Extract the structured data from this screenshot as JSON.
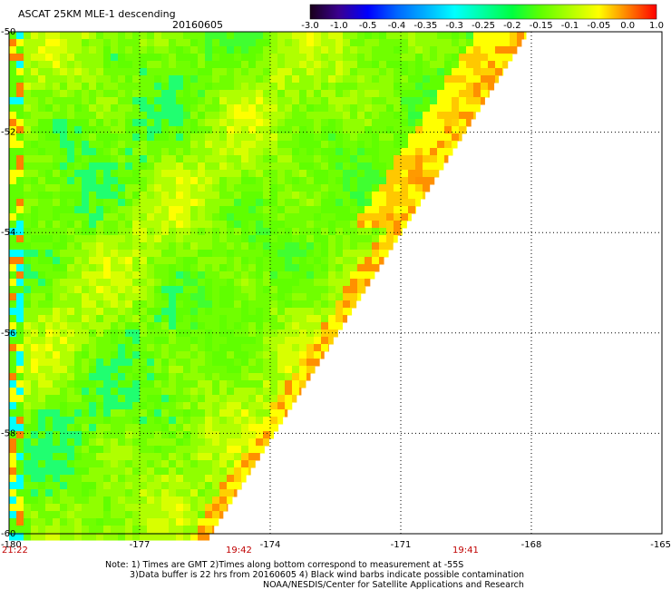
{
  "header": {
    "title": "ASCAT 25KM MLE-1 descending",
    "date": "20160605"
  },
  "colorbar": {
    "labels": [
      "-3.0",
      "-1.0",
      "-0.5",
      "-0.4",
      "-0.35",
      "-0.3",
      "-0.25",
      "-0.2",
      "-0.15",
      "-0.1",
      "-0.05",
      "0.0",
      "1.0"
    ],
    "colors": [
      "#1a001a",
      "#3a0090",
      "#0000ff",
      "#0066ff",
      "#00b0ff",
      "#00ffff",
      "#00ffa0",
      "#00ff40",
      "#60ff00",
      "#b0ff00",
      "#ffff00",
      "#ff8000",
      "#ff0000"
    ]
  },
  "map": {
    "lon_range": [
      -180,
      -165
    ],
    "lat_range": [
      -60,
      -50
    ],
    "x_ticks": [
      "-180",
      "-177",
      "-174",
      "-171",
      "-168",
      "-165"
    ],
    "y_ticks": [
      "-50",
      "-52",
      "-54",
      "-56",
      "-58",
      "-60"
    ],
    "times": [
      {
        "label": "21:22"
      },
      {
        "label": "19:42"
      },
      {
        "label": "19:41"
      }
    ]
  },
  "notes": {
    "line1": "Note: 1) Times are GMT 2)Times along bottom correspond to measurement at -55S",
    "line2": "3)Data buffer is 22 hrs from 20160605 4) Black wind barbs indicate possible contamination",
    "line3": "NOAA/NESDIS/Center for Satellite Applications and Research"
  }
}
